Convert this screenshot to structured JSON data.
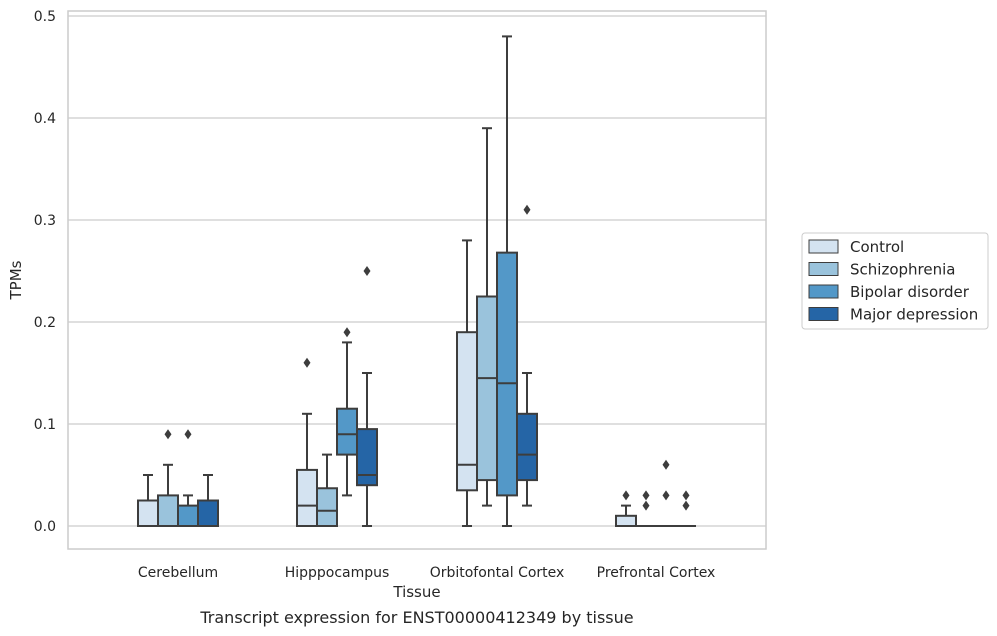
{
  "chart_data": {
    "type": "box",
    "caption": "Transcript expression for ENST00000412349 by tissue",
    "xlabel": "Tissue",
    "ylabel": "TPMs",
    "ylim": [
      -0.023,
      0.505
    ],
    "yticks": [
      0.0,
      0.1,
      0.2,
      0.3,
      0.4,
      0.5
    ],
    "ytick_labels": [
      "0.0",
      "0.1",
      "0.2",
      "0.3",
      "0.4",
      "0.5"
    ],
    "grid": "horizontal",
    "legend_position": "right",
    "categories": [
      "Cerebellum",
      "Hipppocampus",
      "Orbitofontal Cortex",
      "Prefrontal Cortex"
    ],
    "series": [
      {
        "name": "Control",
        "color": "#d4e3f1",
        "boxes": [
          {
            "whislo": 0.0,
            "q1": 0.0,
            "med": 0.0,
            "q3": 0.025,
            "whishi": 0.05,
            "fliers": []
          },
          {
            "whislo": 0.0,
            "q1": 0.0,
            "med": 0.02,
            "q3": 0.055,
            "whishi": 0.11,
            "fliers": [
              0.16
            ]
          },
          {
            "whislo": 0.0,
            "q1": 0.035,
            "med": 0.06,
            "q3": 0.19,
            "whishi": 0.28,
            "fliers": []
          },
          {
            "whislo": 0.0,
            "q1": 0.0,
            "med": 0.0,
            "q3": 0.01,
            "whishi": 0.02,
            "fliers": [
              0.03
            ]
          }
        ]
      },
      {
        "name": "Schizophrenia",
        "color": "#9ac3dc",
        "boxes": [
          {
            "whislo": 0.0,
            "q1": 0.0,
            "med": 0.0,
            "q3": 0.03,
            "whishi": 0.06,
            "fliers": [
              0.09
            ]
          },
          {
            "whislo": 0.0,
            "q1": 0.0,
            "med": 0.015,
            "q3": 0.037,
            "whishi": 0.07,
            "fliers": []
          },
          {
            "whislo": 0.02,
            "q1": 0.045,
            "med": 0.145,
            "q3": 0.225,
            "whishi": 0.39,
            "fliers": []
          },
          {
            "whislo": 0.0,
            "q1": 0.0,
            "med": 0.0,
            "q3": 0.0,
            "whishi": 0.0,
            "fliers": [
              0.02,
              0.03
            ]
          }
        ]
      },
      {
        "name": "Bipolar disorder",
        "color": "#5398c8",
        "boxes": [
          {
            "whislo": 0.0,
            "q1": 0.0,
            "med": 0.0,
            "q3": 0.02,
            "whishi": 0.03,
            "fliers": [
              0.09
            ]
          },
          {
            "whislo": 0.03,
            "q1": 0.07,
            "med": 0.09,
            "q3": 0.115,
            "whishi": 0.18,
            "fliers": [
              0.19
            ]
          },
          {
            "whislo": 0.0,
            "q1": 0.03,
            "med": 0.14,
            "q3": 0.268,
            "whishi": 0.48,
            "fliers": []
          },
          {
            "whislo": 0.0,
            "q1": 0.0,
            "med": 0.0,
            "q3": 0.0,
            "whishi": 0.0,
            "fliers": [
              0.03,
              0.06
            ]
          }
        ]
      },
      {
        "name": "Major depression",
        "color": "#2565a6",
        "boxes": [
          {
            "whislo": 0.0,
            "q1": 0.0,
            "med": 0.0,
            "q3": 0.025,
            "whishi": 0.05,
            "fliers": []
          },
          {
            "whislo": 0.0,
            "q1": 0.04,
            "med": 0.05,
            "q3": 0.095,
            "whishi": 0.15,
            "fliers": [
              0.25
            ]
          },
          {
            "whislo": 0.02,
            "q1": 0.045,
            "med": 0.07,
            "q3": 0.11,
            "whishi": 0.15,
            "fliers": [
              0.31
            ]
          },
          {
            "whislo": 0.0,
            "q1": 0.0,
            "med": 0.0,
            "q3": 0.0,
            "whishi": 0.0,
            "fliers": [
              0.02,
              0.03
            ]
          }
        ]
      }
    ]
  }
}
